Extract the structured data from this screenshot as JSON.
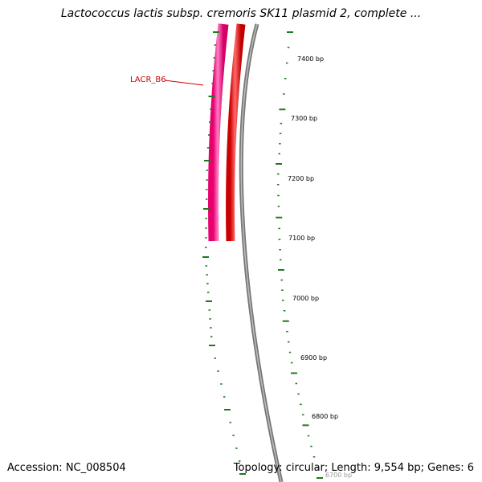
{
  "title": "Lactococcus lactis subsp. cremoris SK11 plasmid 2, complete ...",
  "footer": {
    "accession": "Accession: NC_008504",
    "summary": "Topology: circular; Length: 9,554 bp; Genes: 6"
  },
  "genes": [
    {
      "label": "LACR_B6",
      "color": "#ff0a8c",
      "strand": "outer"
    },
    {
      "label": "",
      "color": "#ff0000",
      "strand": "inner"
    }
  ],
  "tick_labels": [
    "7400 bp",
    "7300 bp",
    "7200 bp",
    "7100 bp",
    "7000 bp",
    "6900 bp",
    "6800 bp",
    "6700 bp"
  ],
  "colors": {
    "backbone": "#888888",
    "ticks": "#1e7a1e",
    "label": "#cc0000"
  }
}
